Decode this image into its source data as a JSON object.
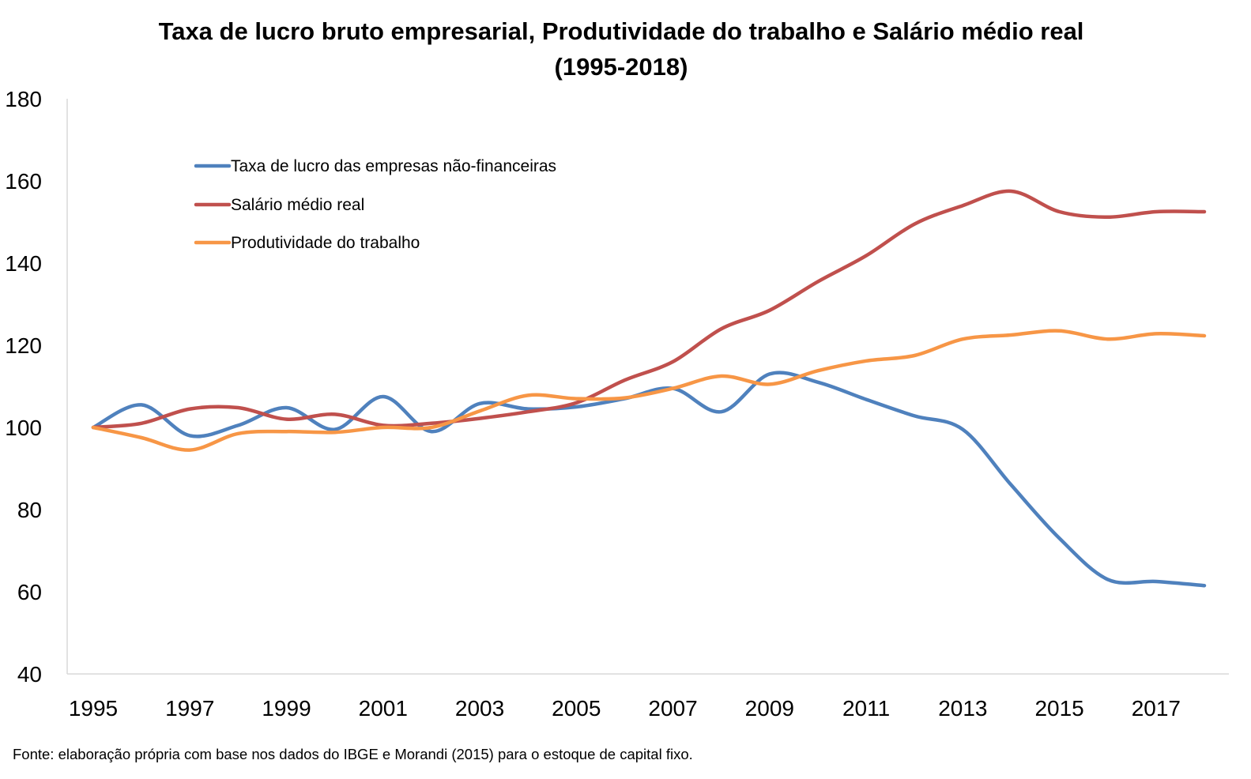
{
  "chart_data": {
    "type": "line",
    "title_lines": [
      "Taxa de lucro bruto empresarial, Produtividade do trabalho e Salário médio real",
      "(1995-2018)"
    ],
    "xlabel": "",
    "ylabel": "",
    "ylim": [
      40,
      180
    ],
    "yticks": [
      "40",
      "60",
      "80",
      "100",
      "120",
      "140",
      "160",
      "180"
    ],
    "x": [
      1995,
      1996,
      1997,
      1998,
      1999,
      2000,
      2001,
      2002,
      2003,
      2004,
      2005,
      2006,
      2007,
      2008,
      2009,
      2010,
      2011,
      2012,
      2013,
      2014,
      2015,
      2016,
      2017,
      2018
    ],
    "xtick_labels": [
      "1995",
      "1997",
      "1999",
      "2001",
      "2003",
      "2005",
      "2007",
      "2009",
      "2011",
      "2013",
      "2015",
      "2017"
    ],
    "grid": false,
    "legend_position": "top-left",
    "series": [
      {
        "name": "Taxa de lucro das empresas não-financeiras",
        "color": "#4f81bd",
        "values": [
          100,
          105.5,
          98,
          100.5,
          104.8,
          99.5,
          107.5,
          99,
          105.8,
          104.5,
          105,
          107,
          109.5,
          103.8,
          113,
          111,
          106.8,
          102.8,
          99.5,
          86,
          73,
          63,
          62.5,
          61.5
        ]
      },
      {
        "name": "Salário médio real",
        "color": "#c0504d",
        "values": [
          100,
          101,
          104.5,
          104.8,
          102,
          103.2,
          100.5,
          101,
          102.2,
          103.8,
          106,
          111.5,
          116,
          124,
          128.5,
          135.5,
          141.8,
          149.5,
          154,
          157.5,
          152.5,
          151.2,
          152.5,
          152.5
        ]
      },
      {
        "name": "Produtividade do trabalho",
        "color": "#f79646",
        "values": [
          100,
          97.5,
          94.5,
          98.5,
          99,
          98.8,
          100,
          100,
          104,
          107.8,
          107,
          107.2,
          109.5,
          112.5,
          110.5,
          113.8,
          116.2,
          117.5,
          121.5,
          122.5,
          123.5,
          121.5,
          122.8,
          122.3
        ]
      }
    ],
    "source_note": "Fonte: elaboração própria com base nos dados do IBGE e Morandi (2015) para o estoque de capital fixo."
  }
}
